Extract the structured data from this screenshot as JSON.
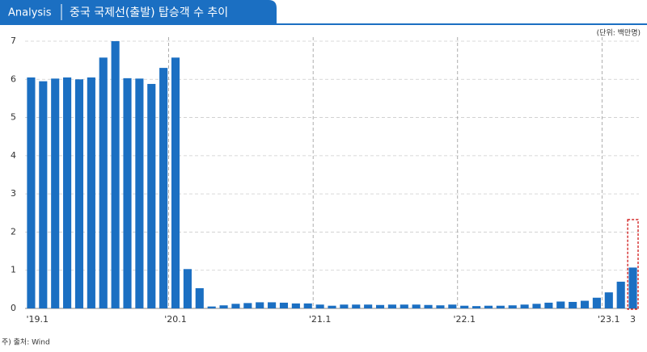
{
  "chart_data": {
    "type": "bar",
    "header": "Analysis",
    "title": "중국 국제선(출발) 탑승객 수 추이",
    "unit": "(단위: 백만명)",
    "source": "주) 출처: Wind",
    "categories": [
      "'19.1",
      null,
      null,
      null,
      null,
      null,
      null,
      null,
      null,
      null,
      null,
      null,
      "'20.1",
      null,
      null,
      null,
      null,
      null,
      null,
      null,
      null,
      null,
      null,
      null,
      "'21.1",
      null,
      null,
      null,
      null,
      null,
      null,
      null,
      null,
      null,
      null,
      null,
      "'22.1",
      null,
      null,
      null,
      null,
      null,
      null,
      null,
      null,
      null,
      null,
      null,
      "'23.1",
      null,
      "3"
    ],
    "values": [
      6.05,
      5.95,
      6.02,
      6.05,
      6.0,
      6.05,
      6.57,
      7.0,
      6.03,
      6.02,
      5.88,
      6.3,
      6.57,
      1.03,
      0.53,
      0.05,
      0.08,
      0.12,
      0.14,
      0.16,
      0.16,
      0.15,
      0.13,
      0.13,
      0.1,
      0.07,
      0.1,
      0.1,
      0.1,
      0.09,
      0.1,
      0.1,
      0.1,
      0.09,
      0.08,
      0.1,
      0.07,
      0.06,
      0.07,
      0.07,
      0.08,
      0.1,
      0.12,
      0.15,
      0.18,
      0.17,
      0.2,
      0.28,
      0.42,
      0.7,
      1.07
    ],
    "color": "#1b6fc2",
    "ylim": [
      0,
      7
    ],
    "yticks": [
      0,
      1,
      2,
      3,
      4,
      5,
      6,
      7
    ],
    "grid": true
  }
}
